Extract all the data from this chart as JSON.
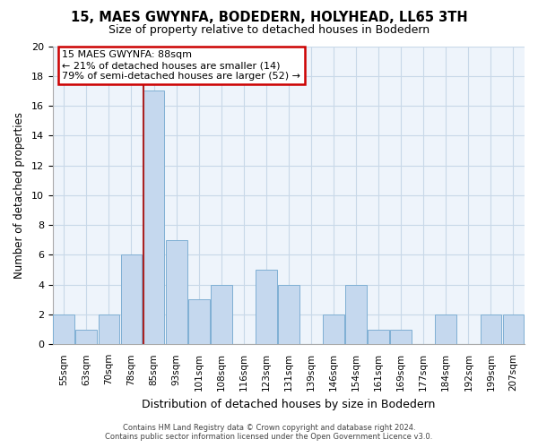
{
  "title": "15, MAES GWYNFA, BODEDERN, HOLYHEAD, LL65 3TH",
  "subtitle": "Size of property relative to detached houses in Bodedern",
  "xlabel": "Distribution of detached houses by size in Bodedern",
  "ylabel": "Number of detached properties",
  "bin_labels": [
    "55sqm",
    "63sqm",
    "70sqm",
    "78sqm",
    "85sqm",
    "93sqm",
    "101sqm",
    "108sqm",
    "116sqm",
    "123sqm",
    "131sqm",
    "139sqm",
    "146sqm",
    "154sqm",
    "161sqm",
    "169sqm",
    "177sqm",
    "184sqm",
    "192sqm",
    "199sqm",
    "207sqm"
  ],
  "bar_heights": [
    2,
    1,
    2,
    6,
    17,
    7,
    3,
    4,
    0,
    5,
    4,
    0,
    2,
    4,
    1,
    1,
    0,
    2,
    0,
    2,
    2
  ],
  "bar_color": "#c5d8ee",
  "bar_edge_color": "#7fafd4",
  "highlight_bar_index": 4,
  "highlight_line_color": "#aa2222",
  "annotation_text": "15 MAES GWYNFA: 88sqm\n← 21% of detached houses are smaller (14)\n79% of semi-detached houses are larger (52) →",
  "annotation_box_color": "#ffffff",
  "annotation_box_edgecolor": "#cc0000",
  "ylim": [
    0,
    20
  ],
  "yticks": [
    0,
    2,
    4,
    6,
    8,
    10,
    12,
    14,
    16,
    18,
    20
  ],
  "footer_line1": "Contains HM Land Registry data © Crown copyright and database right 2024.",
  "footer_line2": "Contains public sector information licensed under the Open Government Licence v3.0.",
  "bg_color": "#ffffff",
  "plot_bg_color": "#eef4fb",
  "grid_color": "#c8d8e8"
}
